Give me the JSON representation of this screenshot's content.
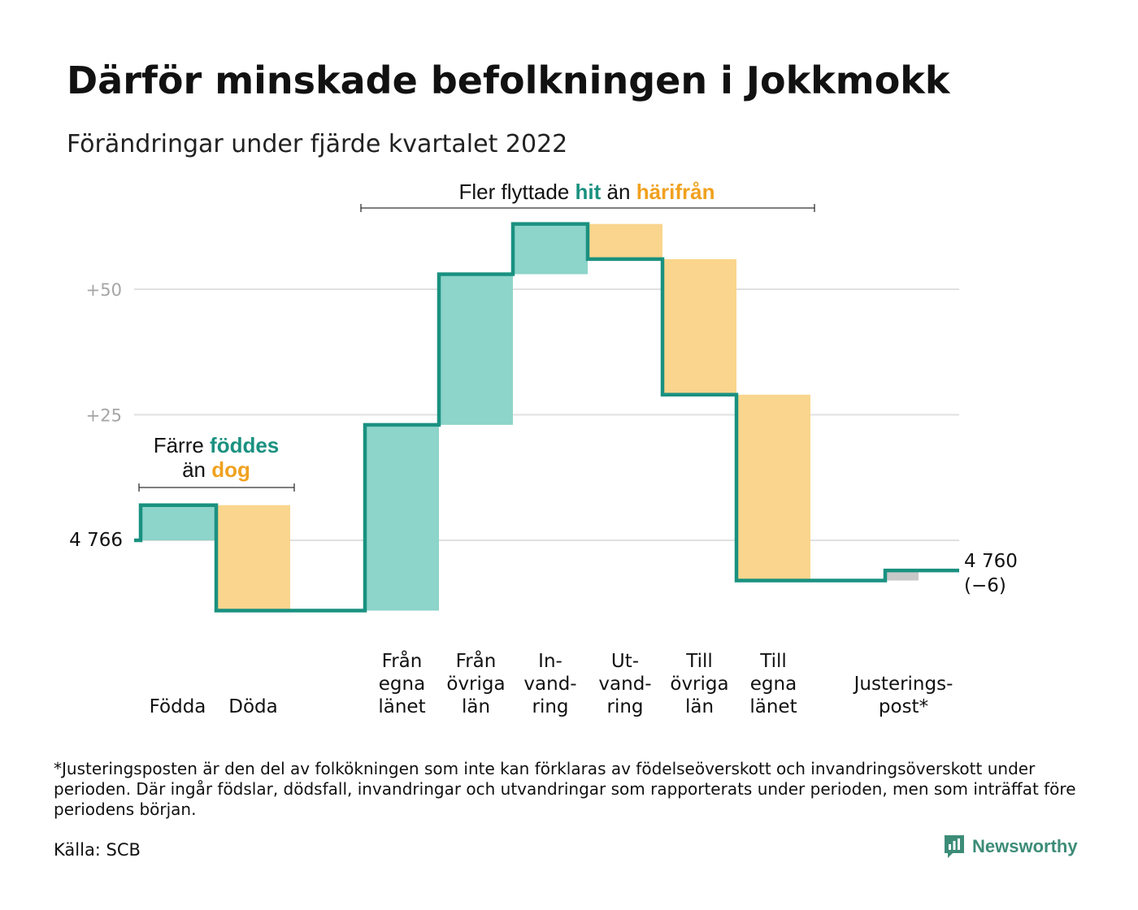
{
  "title": "Därför minskade befolkningen i Jokkmokk",
  "subtitle": "Förändringar under fjärde kvartalet 2022",
  "annotations": {
    "top_prefix": "Fler flyttade ",
    "top_in": "hit",
    "top_mid": " än ",
    "top_out": "härifrån",
    "left_prefix": "Färre ",
    "left_in": "föddes",
    "left_line2_prefix": "än ",
    "left_out": "dog"
  },
  "chart_data": {
    "type": "waterfall",
    "start_label": "4 766",
    "end_label_value": "4 760",
    "end_label_change": "(−6)",
    "y_ticks": [
      {
        "value": 25,
        "label": "+25"
      },
      {
        "value": 50,
        "label": "+50"
      }
    ],
    "ylim": [
      -17,
      66
    ],
    "grid": true,
    "steps": [
      {
        "label": [
          "Födda"
        ],
        "change": 7,
        "kind": "in"
      },
      {
        "label": [
          "Döda"
        ],
        "change": -21,
        "kind": "out"
      },
      {
        "label": [
          "Från",
          "egna",
          "länet"
        ],
        "change": 37,
        "kind": "in"
      },
      {
        "label": [
          "Från",
          "övriga",
          "län"
        ],
        "change": 30,
        "kind": "in"
      },
      {
        "label": [
          "In-",
          "vand-",
          "ring"
        ],
        "change": 10,
        "kind": "in"
      },
      {
        "label": [
          "Ut-",
          "vand-",
          "ring"
        ],
        "change": -7,
        "kind": "out"
      },
      {
        "label": [
          "Till",
          "övriga",
          "län"
        ],
        "change": -27,
        "kind": "out"
      },
      {
        "label": [
          "Till",
          "egna",
          "länet"
        ],
        "change": -37,
        "kind": "out"
      },
      {
        "label": [
          "Justerings-",
          "post*"
        ],
        "change": 2,
        "kind": "adjust"
      }
    ]
  },
  "footnote": "*Justeringsposten är den del av folkökningen som inte kan förklaras av födelseöverskott och invandringsöverskott under perioden. Där ingår födslar, dödsfall, invandringar och utvandringar som rapporterats under perioden, men som inträffat före periodens början.",
  "source": "Källa: SCB",
  "brand": "Newsworthy",
  "colors": {
    "in_fill": "#8dd4ca",
    "out_fill": "#f9d58d",
    "adjust_fill": "#c8c8c8",
    "line": "#1a9180",
    "in_text": "#1a9180",
    "out_text": "#f0a11f",
    "grid": "#e0e0e0",
    "tick_text": "#a5a5a5"
  }
}
